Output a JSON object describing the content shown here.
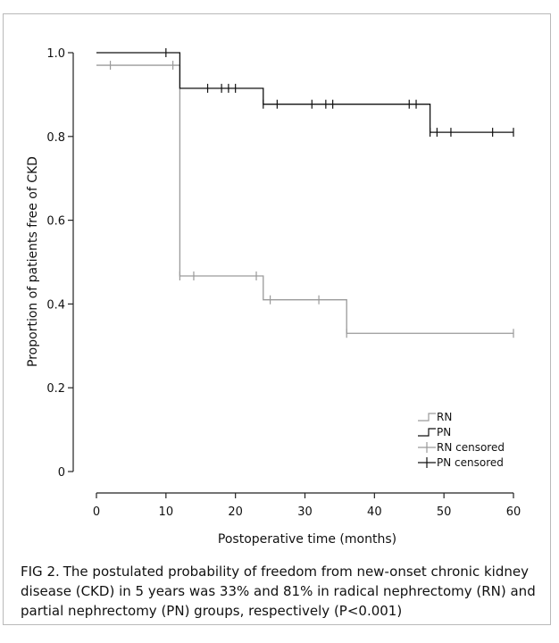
{
  "chart_data": {
    "type": "line",
    "subtype": "kaplan-meier",
    "xlabel": "Postoperative time (months)",
    "ylabel": "Proportion of patients free of CKD",
    "xlim": [
      0,
      60
    ],
    "ylim": [
      0,
      1.0
    ],
    "x_ticks": [
      0,
      10,
      20,
      30,
      40,
      50,
      60
    ],
    "x_tick_labels": [
      "0",
      "10",
      "20",
      "30",
      "40",
      "50",
      "60"
    ],
    "y_ticks": [
      0,
      0.2,
      0.4,
      0.6,
      0.8,
      1.0
    ],
    "y_tick_labels": [
      "0",
      "0.2",
      "0.4",
      "0.6",
      "0.8",
      "1.0"
    ],
    "grid": false,
    "legend_position": "bottom-right",
    "series": [
      {
        "name": "RN",
        "color": "#9a9a9a",
        "steps": [
          [
            0,
            0.97
          ],
          [
            12,
            0.467
          ],
          [
            24,
            0.41
          ],
          [
            36,
            0.33
          ],
          [
            60,
            0.33
          ]
        ],
        "censored_name": "RN censored",
        "censored": [
          [
            2,
            0.97
          ],
          [
            11,
            0.97
          ],
          [
            12,
            0.467
          ],
          [
            14,
            0.467
          ],
          [
            23,
            0.467
          ],
          [
            25,
            0.41
          ],
          [
            32,
            0.41
          ],
          [
            36,
            0.33
          ],
          [
            60,
            0.33
          ]
        ]
      },
      {
        "name": "PN",
        "color": "#111111",
        "steps": [
          [
            0,
            1.0
          ],
          [
            12,
            0.915
          ],
          [
            24,
            0.877
          ],
          [
            48,
            0.81
          ],
          [
            60,
            0.81
          ]
        ],
        "censored_name": "PN censored",
        "censored": [
          [
            10,
            1.0
          ],
          [
            16,
            0.915
          ],
          [
            18,
            0.915
          ],
          [
            19,
            0.915
          ],
          [
            20,
            0.915
          ],
          [
            24,
            0.877
          ],
          [
            26,
            0.877
          ],
          [
            31,
            0.877
          ],
          [
            33,
            0.877
          ],
          [
            34,
            0.877
          ],
          [
            45,
            0.877
          ],
          [
            46,
            0.877
          ],
          [
            48,
            0.81
          ],
          [
            49,
            0.81
          ],
          [
            51,
            0.81
          ],
          [
            57,
            0.81
          ],
          [
            60,
            0.81
          ]
        ]
      }
    ]
  },
  "caption": {
    "label": "FIG 2.",
    "text": "The postulated probability of freedom from new-onset chronic kidney disease (CKD) in 5 years was 33% and 81% in radical nephrectomy (RN) and partial nephrectomy (PN) groups, respectively (P<0.001)"
  }
}
